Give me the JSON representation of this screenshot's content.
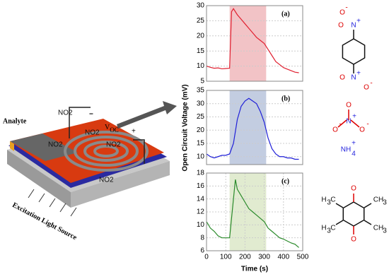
{
  "chart_data": [
    {
      "type": "line",
      "panel_label": "(a)",
      "ylabel": "Open Circuit Voltage (mV)",
      "x": [
        0,
        20,
        40,
        60,
        80,
        100,
        120,
        130,
        140,
        160,
        180,
        200,
        220,
        240,
        260,
        280,
        300,
        320,
        340,
        360,
        380,
        400,
        420,
        440,
        460,
        480
      ],
      "series": [
        {
          "color": "#e02030",
          "values": [
            10,
            9.6,
            9.3,
            9.4,
            9.1,
            9.2,
            9.3,
            28,
            29,
            27,
            25.5,
            24,
            22.5,
            21,
            19.5,
            18.5,
            17.5,
            15.5,
            13.5,
            11.5,
            10.5,
            9.5,
            9,
            8.5,
            8,
            7.8
          ]
        }
      ],
      "shade": {
        "x": [
          120,
          310
        ],
        "color": "#f0b8bc"
      },
      "xlim": [
        0,
        500
      ],
      "ylim": [
        5,
        30
      ],
      "yticks": [
        5,
        10,
        15,
        20,
        25,
        30
      ]
    },
    {
      "type": "line",
      "panel_label": "(b)",
      "x": [
        0,
        20,
        40,
        60,
        80,
        100,
        120,
        140,
        160,
        180,
        200,
        220,
        240,
        260,
        280,
        300,
        320,
        340,
        360,
        380,
        400,
        420,
        440,
        460,
        480
      ],
      "series": [
        {
          "color": "#2020d8",
          "values": [
            11,
            10,
            9.5,
            10,
            10.5,
            10.5,
            11,
            15,
            24,
            29,
            31,
            32,
            31,
            30,
            27,
            23,
            17,
            13,
            11,
            10,
            10,
            9.5,
            9.5,
            9,
            9
          ]
        }
      ],
      "shade": {
        "x": [
          120,
          310
        ],
        "color": "#b8c4dc"
      },
      "xlim": [
        0,
        500
      ],
      "ylim": [
        7,
        35
      ],
      "yticks": [
        10,
        15,
        20,
        25,
        30,
        35
      ]
    },
    {
      "type": "line",
      "panel_label": "(c)",
      "xlabel": "Time (s)",
      "x": [
        0,
        20,
        40,
        60,
        80,
        100,
        120,
        140,
        150,
        160,
        180,
        200,
        220,
        240,
        260,
        280,
        300,
        320,
        340,
        360,
        380,
        400,
        420,
        440,
        460,
        480
      ],
      "series": [
        {
          "color": "#2a8a2a",
          "values": [
            10.5,
            9.5,
            9,
            8.3,
            8,
            8,
            8,
            14,
            17,
            15.5,
            14.5,
            13.5,
            12.5,
            12,
            11.5,
            11,
            10.5,
            9.5,
            9,
            8.5,
            8,
            7.8,
            7.5,
            7.2,
            7,
            6.5
          ]
        }
      ],
      "shade": {
        "x": [
          120,
          310
        ],
        "color": "#dce8c8"
      },
      "xlim": [
        0,
        500
      ],
      "xticks": [
        0,
        100,
        200,
        300,
        400,
        500
      ],
      "ylim": [
        6,
        18
      ],
      "yticks": [
        6,
        8,
        10,
        12,
        14,
        16,
        18
      ]
    }
  ],
  "illustration": {
    "analyte": "Analyte",
    "voltage": "V",
    "voltage_sub": "OC",
    "plus": "+",
    "minus": "−",
    "source": "Excitation Light Source",
    "groups": [
      "NO2",
      "NO2",
      "NO2",
      "NO2",
      "NO2"
    ]
  },
  "molecules": [
    {
      "atoms": [
        "O",
        "-",
        "N",
        "+",
        "O",
        "O",
        "N",
        "+",
        "O",
        "-"
      ]
    },
    {
      "atoms": [
        "O",
        "N",
        "+",
        "O",
        "-",
        "O",
        "-",
        "NH",
        "4",
        "+"
      ]
    },
    {
      "atoms": [
        "O",
        "O",
        "H",
        "3",
        "C",
        "CH",
        "3",
        "H",
        "3",
        "C",
        "CH",
        "3"
      ]
    }
  ]
}
